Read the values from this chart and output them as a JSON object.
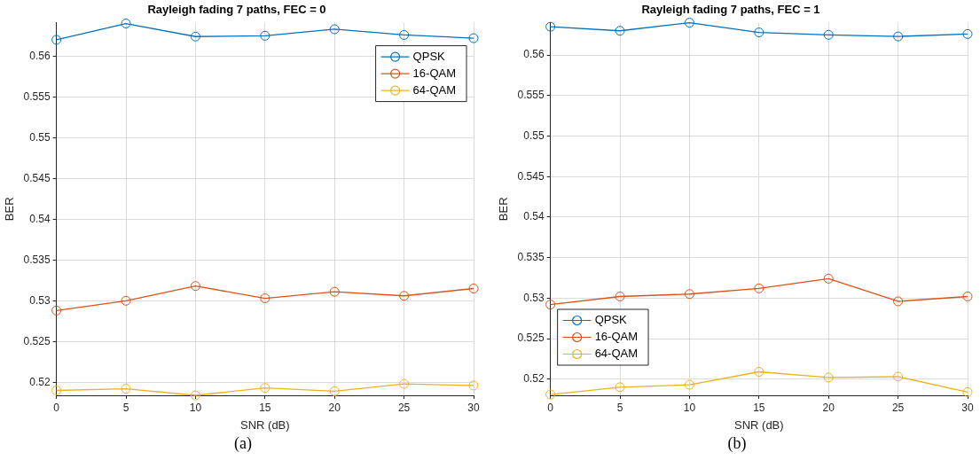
{
  "chart_data": [
    {
      "type": "line",
      "title": "Rayleigh fading 7 paths, FEC = 0",
      "xlabel": "SNR (dB)",
      "ylabel": "BER",
      "x": [
        0,
        5,
        10,
        15,
        20,
        25,
        30
      ],
      "series": [
        {
          "name": "QPSK",
          "color": "#0072bd",
          "values": [
            0.562,
            0.564,
            0.5624,
            0.5625,
            0.5633,
            0.5626,
            0.5622
          ]
        },
        {
          "name": "16-QAM",
          "color": "#d95319",
          "values": [
            0.5288,
            0.53,
            0.5318,
            0.5303,
            0.5311,
            0.5306,
            0.5315
          ]
        },
        {
          "name": "64-QAM",
          "color": "#edb120",
          "values": [
            0.519,
            0.5192,
            0.5184,
            0.5193,
            0.5189,
            0.5198,
            0.5196
          ]
        }
      ],
      "xlim": [
        0,
        30
      ],
      "xticks": [
        0,
        5,
        10,
        15,
        20,
        25,
        30
      ],
      "ylim": [
        0.5184,
        0.5641
      ],
      "yticks": [
        0.52,
        0.525,
        0.53,
        0.535,
        0.54,
        0.545,
        0.55,
        0.555,
        0.56
      ],
      "grid": true,
      "legend": "top right",
      "marker": "circle",
      "line_style": "solid",
      "annotations": [
        "(a)"
      ]
    },
    {
      "type": "line",
      "title": "Rayleigh fading 7 paths, FEC = 1",
      "xlabel": "SNR (dB)",
      "ylabel": "BER",
      "x": [
        0,
        5,
        10,
        15,
        20,
        25,
        30
      ],
      "series": [
        {
          "name": "QPSK",
          "color": "#0072bd",
          "values": [
            0.5635,
            0.563,
            0.564,
            0.5628,
            0.5625,
            0.5623,
            0.5626
          ]
        },
        {
          "name": "16-QAM",
          "color": "#d95319",
          "values": [
            0.5292,
            0.5302,
            0.5305,
            0.5312,
            0.5324,
            0.5296,
            0.5302
          ]
        },
        {
          "name": "64-QAM",
          "color": "#edb120",
          "values": [
            0.5181,
            0.519,
            0.5193,
            0.5209,
            0.5202,
            0.5203,
            0.5184
          ]
        }
      ],
      "xlim": [
        0,
        30
      ],
      "xticks": [
        0,
        5,
        10,
        15,
        20,
        25,
        30
      ],
      "ylim": [
        0.518,
        0.564
      ],
      "yticks": [
        0.52,
        0.525,
        0.53,
        0.535,
        0.54,
        0.545,
        0.55,
        0.555,
        0.56
      ],
      "grid": true,
      "legend": "bottom left",
      "marker": "circle",
      "line_style": "solid",
      "annotations": [
        "(b)"
      ]
    }
  ]
}
